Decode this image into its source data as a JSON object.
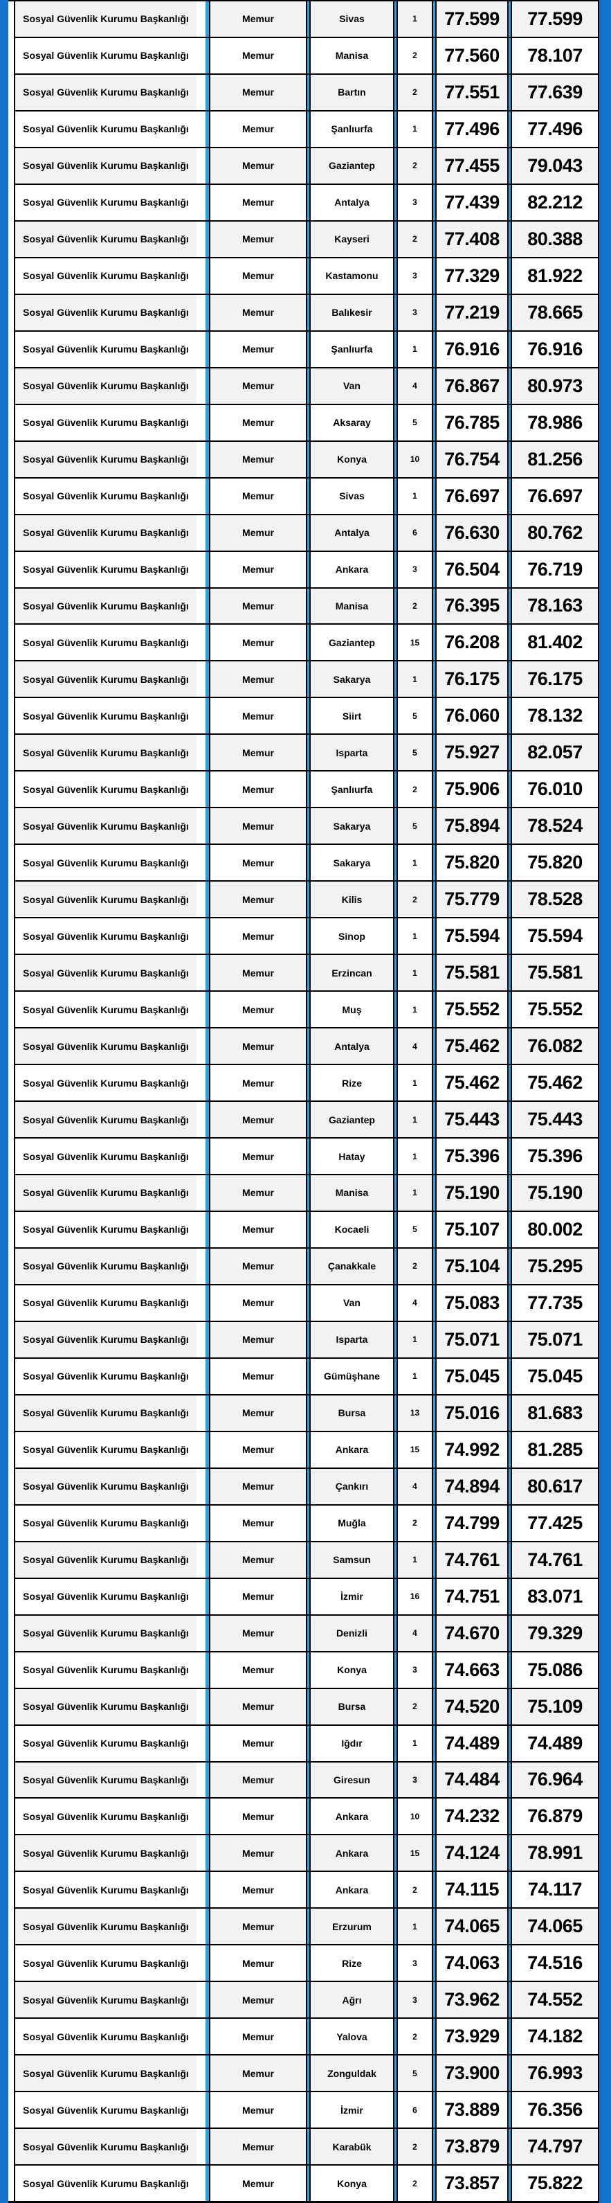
{
  "table": {
    "institution": "Sosyal Güvenlik Kurumu Başkanlığı",
    "position_title": "Memur",
    "colors": {
      "edge_blue": "#1374c9",
      "stripe_blue": "#27a3e2",
      "row_alt_gray": "#f2f2f2",
      "grid_black": "#000000"
    },
    "rows": [
      {
        "city": "Sivas",
        "count": "1",
        "score1": "77.599",
        "score2": "77.599"
      },
      {
        "city": "Manisa",
        "count": "2",
        "score1": "77.560",
        "score2": "78.107"
      },
      {
        "city": "Bartın",
        "count": "2",
        "score1": "77.551",
        "score2": "77.639"
      },
      {
        "city": "Şanlıurfa",
        "count": "1",
        "score1": "77.496",
        "score2": "77.496"
      },
      {
        "city": "Gaziantep",
        "count": "2",
        "score1": "77.455",
        "score2": "79.043"
      },
      {
        "city": "Antalya",
        "count": "3",
        "score1": "77.439",
        "score2": "82.212"
      },
      {
        "city": "Kayseri",
        "count": "2",
        "score1": "77.408",
        "score2": "80.388"
      },
      {
        "city": "Kastamonu",
        "count": "3",
        "score1": "77.329",
        "score2": "81.922"
      },
      {
        "city": "Balıkesir",
        "count": "3",
        "score1": "77.219",
        "score2": "78.665"
      },
      {
        "city": "Şanlıurfa",
        "count": "1",
        "score1": "76.916",
        "score2": "76.916"
      },
      {
        "city": "Van",
        "count": "4",
        "score1": "76.867",
        "score2": "80.973"
      },
      {
        "city": "Aksaray",
        "count": "5",
        "score1": "76.785",
        "score2": "78.986"
      },
      {
        "city": "Konya",
        "count": "10",
        "score1": "76.754",
        "score2": "81.256"
      },
      {
        "city": "Sivas",
        "count": "1",
        "score1": "76.697",
        "score2": "76.697"
      },
      {
        "city": "Antalya",
        "count": "6",
        "score1": "76.630",
        "score2": "80.762"
      },
      {
        "city": "Ankara",
        "count": "3",
        "score1": "76.504",
        "score2": "76.719"
      },
      {
        "city": "Manisa",
        "count": "2",
        "score1": "76.395",
        "score2": "78.163"
      },
      {
        "city": "Gaziantep",
        "count": "15",
        "score1": "76.208",
        "score2": "81.402"
      },
      {
        "city": "Sakarya",
        "count": "1",
        "score1": "76.175",
        "score2": "76.175"
      },
      {
        "city": "Siirt",
        "count": "5",
        "score1": "76.060",
        "score2": "78.132"
      },
      {
        "city": "Isparta",
        "count": "5",
        "score1": "75.927",
        "score2": "82.057"
      },
      {
        "city": "Şanlıurfa",
        "count": "2",
        "score1": "75.906",
        "score2": "76.010"
      },
      {
        "city": "Sakarya",
        "count": "5",
        "score1": "75.894",
        "score2": "78.524"
      },
      {
        "city": "Sakarya",
        "count": "1",
        "score1": "75.820",
        "score2": "75.820"
      },
      {
        "city": "Kilis",
        "count": "2",
        "score1": "75.779",
        "score2": "78.528"
      },
      {
        "city": "Sinop",
        "count": "1",
        "score1": "75.594",
        "score2": "75.594"
      },
      {
        "city": "Erzincan",
        "count": "1",
        "score1": "75.581",
        "score2": "75.581"
      },
      {
        "city": "Muş",
        "count": "1",
        "score1": "75.552",
        "score2": "75.552"
      },
      {
        "city": "Antalya",
        "count": "4",
        "score1": "75.462",
        "score2": "76.082"
      },
      {
        "city": "Rize",
        "count": "1",
        "score1": "75.462",
        "score2": "75.462"
      },
      {
        "city": "Gaziantep",
        "count": "1",
        "score1": "75.443",
        "score2": "75.443"
      },
      {
        "city": "Hatay",
        "count": "1",
        "score1": "75.396",
        "score2": "75.396"
      },
      {
        "city": "Manisa",
        "count": "1",
        "score1": "75.190",
        "score2": "75.190"
      },
      {
        "city": "Kocaeli",
        "count": "5",
        "score1": "75.107",
        "score2": "80.002"
      },
      {
        "city": "Çanakkale",
        "count": "2",
        "score1": "75.104",
        "score2": "75.295"
      },
      {
        "city": "Van",
        "count": "4",
        "score1": "75.083",
        "score2": "77.735"
      },
      {
        "city": "Isparta",
        "count": "1",
        "score1": "75.071",
        "score2": "75.071"
      },
      {
        "city": "Gümüşhane",
        "count": "1",
        "score1": "75.045",
        "score2": "75.045"
      },
      {
        "city": "Bursa",
        "count": "13",
        "score1": "75.016",
        "score2": "81.683"
      },
      {
        "city": "Ankara",
        "count": "15",
        "score1": "74.992",
        "score2": "81.285"
      },
      {
        "city": "Çankırı",
        "count": "4",
        "score1": "74.894",
        "score2": "80.617"
      },
      {
        "city": "Muğla",
        "count": "2",
        "score1": "74.799",
        "score2": "77.425"
      },
      {
        "city": "Samsun",
        "count": "1",
        "score1": "74.761",
        "score2": "74.761"
      },
      {
        "city": "İzmir",
        "count": "16",
        "score1": "74.751",
        "score2": "83.071"
      },
      {
        "city": "Denizli",
        "count": "4",
        "score1": "74.670",
        "score2": "79.329"
      },
      {
        "city": "Konya",
        "count": "3",
        "score1": "74.663",
        "score2": "75.086"
      },
      {
        "city": "Bursa",
        "count": "2",
        "score1": "74.520",
        "score2": "75.109"
      },
      {
        "city": "Iğdır",
        "count": "1",
        "score1": "74.489",
        "score2": "74.489"
      },
      {
        "city": "Giresun",
        "count": "3",
        "score1": "74.484",
        "score2": "76.964"
      },
      {
        "city": "Ankara",
        "count": "10",
        "score1": "74.232",
        "score2": "76.879"
      },
      {
        "city": "Ankara",
        "count": "15",
        "score1": "74.124",
        "score2": "78.991"
      },
      {
        "city": "Ankara",
        "count": "2",
        "score1": "74.115",
        "score2": "74.117"
      },
      {
        "city": "Erzurum",
        "count": "1",
        "score1": "74.065",
        "score2": "74.065"
      },
      {
        "city": "Rize",
        "count": "3",
        "score1": "74.063",
        "score2": "74.516"
      },
      {
        "city": "Ağrı",
        "count": "3",
        "score1": "73.962",
        "score2": "74.552"
      },
      {
        "city": "Yalova",
        "count": "2",
        "score1": "73.929",
        "score2": "74.182"
      },
      {
        "city": "Zonguldak",
        "count": "5",
        "score1": "73.900",
        "score2": "76.993"
      },
      {
        "city": "İzmir",
        "count": "6",
        "score1": "73.889",
        "score2": "76.356"
      },
      {
        "city": "Karabük",
        "count": "2",
        "score1": "73.879",
        "score2": "74.797"
      },
      {
        "city": "Konya",
        "count": "2",
        "score1": "73.857",
        "score2": "75.822"
      }
    ]
  }
}
